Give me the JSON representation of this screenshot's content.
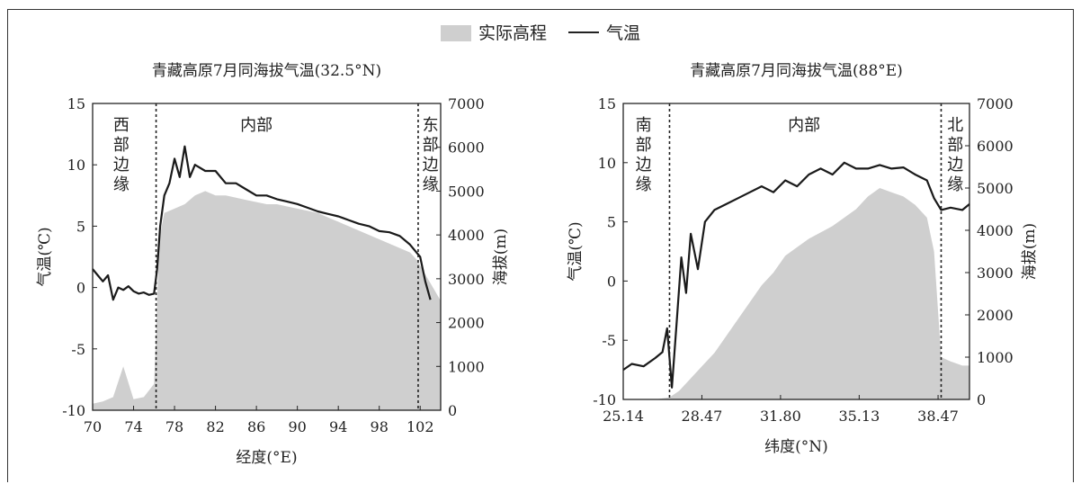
{
  "legend": {
    "area_label": "实际高程",
    "line_label": "气温"
  },
  "chart_data": [
    {
      "type": "area+line",
      "title": "青藏高原7月同海拔气温(32.5°N)",
      "xlabel": "经度(°E)",
      "ylabel_left": "气温(℃)",
      "ylabel_right": "海拔(m)",
      "xlim": [
        70,
        104
      ],
      "ylim_left": [
        -10,
        15
      ],
      "ylim_right": [
        0,
        7000
      ],
      "x_ticks": [
        70,
        74,
        78,
        82,
        86,
        90,
        94,
        98,
        102
      ],
      "y_left_ticks": [
        -10,
        -5,
        0,
        5,
        10,
        15
      ],
      "y_right_ticks": [
        0,
        1000,
        2000,
        3000,
        4000,
        5000,
        6000,
        7000
      ],
      "dividers": [
        76.2,
        101.8
      ],
      "regions": [
        {
          "label": "西部边缘",
          "x": 72.8
        },
        {
          "label": "内部",
          "x": 86
        },
        {
          "label": "东部边缘",
          "x": 103
        }
      ],
      "elevation": {
        "name": "实际高程",
        "x": [
          70,
          71,
          72,
          73,
          74,
          75,
          76,
          76.2,
          76.5,
          77,
          78,
          79,
          80,
          81,
          82,
          83,
          84,
          85,
          86,
          87,
          88,
          89,
          90,
          91,
          92,
          93,
          94,
          95,
          96,
          97,
          98,
          99,
          100,
          101,
          101.8,
          102,
          103,
          104
        ],
        "y": [
          150,
          200,
          300,
          1000,
          250,
          300,
          600,
          1800,
          3900,
          4500,
          4600,
          4700,
          4900,
          5000,
          4900,
          4900,
          4850,
          4800,
          4750,
          4700,
          4700,
          4650,
          4600,
          4550,
          4500,
          4400,
          4300,
          4200,
          4100,
          4000,
          3900,
          3800,
          3700,
          3600,
          3400,
          3300,
          2900,
          2500
        ]
      },
      "temperature": {
        "name": "气温",
        "x": [
          70,
          70.5,
          71,
          71.5,
          72,
          72.5,
          73,
          73.5,
          74,
          74.5,
          75,
          75.5,
          76,
          76.3,
          76.6,
          77,
          77.5,
          78,
          78.5,
          79,
          79.5,
          80,
          81,
          82,
          83,
          84,
          85,
          86,
          87,
          88,
          89,
          90,
          91,
          92,
          93,
          94,
          95,
          96,
          97,
          98,
          99,
          100,
          101,
          101.5,
          102,
          102.5,
          103
        ],
        "y": [
          1.5,
          1.0,
          0.5,
          1.0,
          -1.0,
          0.0,
          -0.2,
          0.1,
          -0.3,
          -0.5,
          -0.4,
          -0.6,
          -0.5,
          1.5,
          5.0,
          7.5,
          8.5,
          10.5,
          9.0,
          11.5,
          9.0,
          10.0,
          9.5,
          9.5,
          8.5,
          8.5,
          8.0,
          7.5,
          7.5,
          7.2,
          7.0,
          6.8,
          6.5,
          6.2,
          6.0,
          5.8,
          5.5,
          5.2,
          5.0,
          4.6,
          4.5,
          4.2,
          3.5,
          3.0,
          2.5,
          0.5,
          -1.0
        ]
      }
    },
    {
      "type": "area+line",
      "title": "青藏高原7月同海拔气温(88°E)",
      "xlabel": "纬度(°N)",
      "ylabel_left": "气温(℃)",
      "ylabel_right": "海拔(m)",
      "xlim": [
        25.14,
        39.8
      ],
      "ylim_left": [
        -10,
        15
      ],
      "ylim_right": [
        0,
        7000
      ],
      "x_ticks": [
        25.14,
        28.47,
        31.8,
        35.13,
        38.47
      ],
      "x_tick_labels": [
        "25.14",
        "28.47",
        "31.80",
        "35.13",
        "38.47"
      ],
      "y_left_ticks": [
        -10,
        -5,
        0,
        5,
        10,
        15
      ],
      "y_right_ticks": [
        0,
        1000,
        2000,
        3000,
        4000,
        5000,
        6000,
        7000
      ],
      "dividers": [
        27.1,
        38.6
      ],
      "regions": [
        {
          "label": "南部边缘",
          "x": 26.0
        },
        {
          "label": "内部",
          "x": 32.8
        },
        {
          "label": "北部边缘",
          "x": 39.2
        }
      ],
      "elevation": {
        "name": "实际高程",
        "x": [
          25.14,
          26.5,
          27.1,
          27.5,
          28,
          28.5,
          29,
          29.5,
          30,
          30.5,
          31,
          31.5,
          32,
          33,
          34,
          35,
          35.5,
          36,
          36.5,
          37,
          37.5,
          38,
          38.3,
          38.6,
          39,
          39.5,
          39.8
        ],
        "y": [
          0,
          0,
          50,
          200,
          500,
          800,
          1100,
          1500,
          1900,
          2300,
          2700,
          3000,
          3400,
          3800,
          4100,
          4500,
          4800,
          5000,
          4900,
          4800,
          4600,
          4300,
          3500,
          1000,
          900,
          800,
          800
        ]
      },
      "temperature": {
        "name": "气温",
        "x": [
          25.14,
          25.5,
          26,
          26.5,
          26.8,
          27,
          27.2,
          27.4,
          27.6,
          27.8,
          28,
          28.3,
          28.6,
          29,
          29.5,
          30,
          30.5,
          31,
          31.5,
          32,
          32.5,
          33,
          33.5,
          34,
          34.5,
          35,
          35.5,
          36,
          36.5,
          37,
          37.5,
          38,
          38.3,
          38.6,
          39,
          39.5,
          39.8
        ],
        "y": [
          -7.5,
          -7.0,
          -7.2,
          -6.5,
          -6.0,
          -4.0,
          -9.0,
          -3.5,
          2.0,
          -1.0,
          4.0,
          1.0,
          5.0,
          6.0,
          6.5,
          7.0,
          7.5,
          8.0,
          7.5,
          8.5,
          8.0,
          9.0,
          9.5,
          9.0,
          10.0,
          9.5,
          9.5,
          9.8,
          9.5,
          9.6,
          9.0,
          8.5,
          7.0,
          6.0,
          6.2,
          6.0,
          6.5
        ]
      }
    }
  ]
}
